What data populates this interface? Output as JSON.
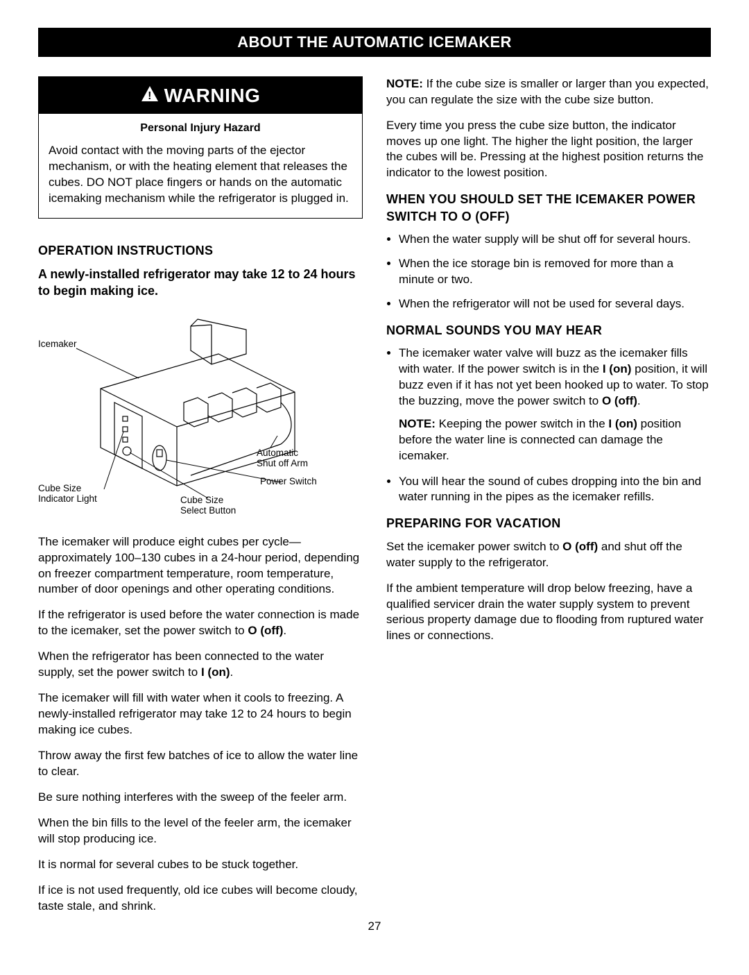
{
  "title_bar": "ABOUT THE AUTOMATIC ICEMAKER",
  "warning": {
    "header": "WARNING",
    "subheader": "Personal Injury Hazard",
    "body": "Avoid contact with the moving parts of the ejector mechanism, or with the heating element that releases the cubes. DO NOT place fingers or hands on the automatic icemaking mechanism while the refrigerator is plugged in."
  },
  "left": {
    "section_title": "OPERATION INSTRUCTIONS",
    "sub": "A newly-installed refrigerator may take 12 to 24 hours to begin making ice.",
    "diagram_labels": {
      "icemaker": "Icemaker",
      "automatic_arm": "Automatic Shut off Arm",
      "power_switch": "Power Switch",
      "cube_size_light": "Cube Size Indicator Light",
      "cube_size_button": "Cube Size Select Button"
    },
    "paras": [
      "The icemaker will produce eight cubes per cycle—approximately 100–130 cubes in a 24-hour period, depending on freezer compartment temperature, room temperature, number of door openings and other operating conditions.",
      "If the refrigerator is used before the water connection is made to the icemaker, set the power switch to <b>O (off)</b>.",
      "When the refrigerator has been connected to the water supply, set the power switch to <b>I (on)</b>.",
      "The icemaker will fill with water when it cools to freezing. A newly-installed refrigerator may take 12 to 24 hours to begin making ice cubes.",
      "Throw away the first few batches of ice to allow the water line to clear.",
      "Be sure nothing interferes with the sweep of the feeler arm.",
      "When the bin fills to the level of the feeler arm, the icemaker will stop producing ice.",
      "It is normal for several cubes to be stuck together.",
      "If ice is not used frequently, old ice cubes will become cloudy, taste stale, and shrink."
    ]
  },
  "right": {
    "top_paras": [
      "<b>NOTE:</b> If the cube size is smaller or larger than you expected, you can regulate the size with the cube size button.",
      "Every time you press the cube size button, the indicator moves up one light. The higher the light position, the larger the cubes will be. Pressing at the highest position returns the indicator to the lowest position."
    ],
    "set_off_title": "WHEN YOU SHOULD SET THE ICEMAKER POWER SWITCH TO O (OFF)",
    "set_off_items": [
      "When the water supply will be shut off for several hours.",
      "When the ice storage bin is removed for more than a minute or two.",
      "When the refrigerator will not be used for several days."
    ],
    "sounds_title": "NORMAL SOUNDS YOU MAY HEAR",
    "sounds_items": [
      "The icemaker water valve will buzz as the icemaker fills with water. If the power switch is in the <b>I (on)</b> position, it will buzz even if it has not yet been hooked up to water. To stop the buzzing, move the power switch to <b>O (off)</b>."
    ],
    "sounds_note": "<b>NOTE:</b> Keeping the power switch in the <b>I (on)</b> position before the water line is connected can damage the icemaker.",
    "sounds_items2": [
      "You will hear the sound of cubes dropping into the bin and water running in the pipes as the icemaker refills."
    ],
    "vacation_title": "PREPARING FOR VACATION",
    "vacation_paras": [
      "Set the icemaker power switch to <b>O (off)</b> and shut off the water supply to the refrigerator.",
      "If the ambient temperature will drop below freezing, have a qualified servicer drain the water supply system to prevent serious property damage due to flooding from ruptured water lines or connections."
    ]
  },
  "page_number": "27"
}
